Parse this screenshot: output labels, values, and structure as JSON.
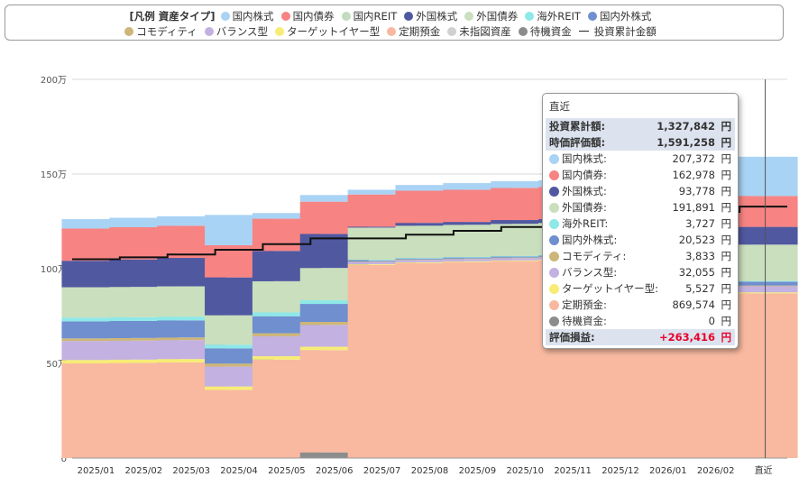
{
  "legend": {
    "title": "[凡例 資産タイプ]",
    "items": [
      {
        "name": "国内株式",
        "color": "#a9d3f5"
      },
      {
        "name": "国内債券",
        "color": "#f78383"
      },
      {
        "name": "国内REIT",
        "color": "#c3dcc0"
      },
      {
        "name": "外国株式",
        "color": "#5058a0"
      },
      {
        "name": "外国債券",
        "color": "#c9dfbd"
      },
      {
        "name": "海外REIT",
        "color": "#8ee8e8"
      },
      {
        "name": "国内外株式",
        "color": "#6f8fcf"
      },
      {
        "name": "コモディティ",
        "color": "#cdb679"
      },
      {
        "name": "バランス型",
        "color": "#c3b1e1"
      },
      {
        "name": "ターゲットイヤー型",
        "color": "#f7ec76"
      },
      {
        "name": "定期預金",
        "color": "#f8b9a0"
      },
      {
        "name": "未指図資産",
        "color": "#d0d0d0"
      },
      {
        "name": "待機資金",
        "color": "#8c8c8c"
      }
    ],
    "line_label": "投資累計金額"
  },
  "chart_data": {
    "type": "bar",
    "stacked": true,
    "categories": [
      "2025/01",
      "2025/02",
      "2025/03",
      "2025/04",
      "2025/05",
      "2025/06",
      "2025/07",
      "2025/08",
      "2025/09",
      "2025/10",
      "2025/11",
      "2025/12",
      "2026/01",
      "2026/02",
      "直近"
    ],
    "y_ticks": [
      "0",
      "50万",
      "100万",
      "150万",
      "200万"
    ],
    "ylim": [
      0,
      2000000
    ],
    "series": [
      {
        "name": "待機資金",
        "color": "#8c8c8c",
        "values": [
          0,
          0,
          0,
          0,
          0,
          30000,
          0,
          0,
          0,
          0,
          0,
          0,
          0,
          0,
          0
        ]
      },
      {
        "name": "定期預金",
        "color": "#f8b9a0",
        "values": [
          500000,
          502000,
          505000,
          360000,
          520000,
          540000,
          1020000,
          1030000,
          1035000,
          1040000,
          1045000,
          1050000,
          1055000,
          1060000,
          869574
        ]
      },
      {
        "name": "ターゲットイヤー型",
        "color": "#f7ec76",
        "values": [
          18000,
          18000,
          18000,
          18000,
          18000,
          18000,
          4000,
          4000,
          4000,
          4000,
          4000,
          4000,
          4000,
          4000,
          5527
        ]
      },
      {
        "name": "バランス型",
        "color": "#c3b1e1",
        "values": [
          100000,
          100000,
          100000,
          105000,
          105000,
          115000,
          12000,
          12000,
          12000,
          12000,
          12000,
          12000,
          12000,
          12000,
          32055
        ]
      },
      {
        "name": "コモディティ",
        "color": "#cdb679",
        "values": [
          14000,
          14000,
          14000,
          16000,
          16000,
          16000,
          3000,
          3000,
          3000,
          3000,
          3000,
          3000,
          3000,
          3000,
          3833
        ]
      },
      {
        "name": "国内外株式",
        "color": "#6f8fcf",
        "values": [
          90000,
          90000,
          90000,
          80000,
          90000,
          95000,
          5000,
          5000,
          5000,
          5000,
          5000,
          5000,
          5000,
          5000,
          20523
        ]
      },
      {
        "name": "海外REIT",
        "color": "#8ee8e8",
        "values": [
          20000,
          20000,
          20000,
          20000,
          20000,
          20000,
          3000,
          3000,
          3000,
          3000,
          3000,
          3000,
          3000,
          3000,
          3727
        ]
      },
      {
        "name": "外国債券",
        "color": "#c9dfbd",
        "values": [
          160000,
          160000,
          160000,
          155000,
          165000,
          170000,
          170000,
          170000,
          170000,
          170000,
          170000,
          170000,
          170000,
          170000,
          191891
        ]
      },
      {
        "name": "外国株式",
        "color": "#5058a0",
        "values": [
          140000,
          145000,
          150000,
          200000,
          160000,
          180000,
          5000,
          15000,
          15000,
          20000,
          20000,
          20000,
          20000,
          20000,
          93778
        ]
      },
      {
        "name": "国内債券",
        "color": "#f78383",
        "values": [
          170000,
          170000,
          170000,
          170000,
          170000,
          170000,
          170000,
          170000,
          170000,
          170000,
          170000,
          170000,
          170000,
          170000,
          162978
        ]
      },
      {
        "name": "国内株式",
        "color": "#a9d3f5",
        "values": [
          50000,
          50000,
          50000,
          160000,
          30000,
          35000,
          25000,
          30000,
          35000,
          35000,
          35000,
          35000,
          35000,
          35000,
          207372
        ]
      }
    ],
    "line": {
      "name": "投資累計金額",
      "values": [
        1050000,
        1060000,
        1075000,
        1100000,
        1130000,
        1160000,
        1160000,
        1180000,
        1200000,
        1220000,
        1240000,
        1260000,
        1280000,
        1300000,
        1327842
      ]
    }
  },
  "tooltip": {
    "header": "直近",
    "invest_label": "投資累計額:",
    "invest_value": "1,327,842",
    "market_label": "時価評価額:",
    "market_value": "1,591,258",
    "unit": "円",
    "rows": [
      {
        "name": "国内株式:",
        "value": "207,372",
        "color": "#a9d3f5"
      },
      {
        "name": "国内債券:",
        "value": "162,978",
        "color": "#f78383"
      },
      {
        "name": "外国株式:",
        "value": "93,778",
        "color": "#5058a0"
      },
      {
        "name": "外国債券:",
        "value": "191,891",
        "color": "#c9dfbd"
      },
      {
        "name": "海外REIT:",
        "value": "3,727",
        "color": "#8ee8e8"
      },
      {
        "name": "国内外株式:",
        "value": "20,523",
        "color": "#6f8fcf"
      },
      {
        "name": "コモディティ:",
        "value": "3,833",
        "color": "#cdb679"
      },
      {
        "name": "バランス型:",
        "value": "32,055",
        "color": "#c3b1e1"
      },
      {
        "name": "ターゲットイヤー型:",
        "value": "5,527",
        "color": "#f7ec76"
      },
      {
        "name": "定期預金:",
        "value": "869,574",
        "color": "#f8b9a0"
      },
      {
        "name": "待機資金:",
        "value": "0",
        "color": "#8c8c8c"
      }
    ],
    "gain_label": "評価損益:",
    "gain_value": "+263,416"
  }
}
